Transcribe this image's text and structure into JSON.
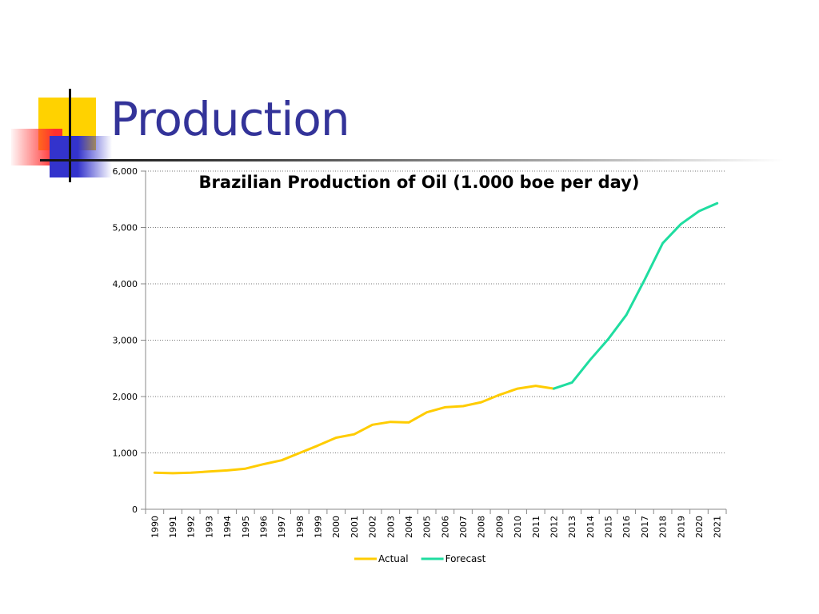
{
  "slide": {
    "title": "Production"
  },
  "colors": {
    "title": "#333399",
    "actual": "#FFCC00",
    "forecast": "#1FDDA0",
    "grid": "#888888"
  },
  "chart_data": {
    "type": "line",
    "title": "Brazilian Production of Oil (1.000 boe per day)",
    "xlabel": "",
    "ylabel": "",
    "ylim": [
      0,
      6000
    ],
    "y_ticks": [
      0,
      1000,
      2000,
      3000,
      4000,
      5000,
      6000
    ],
    "y_tick_labels": [
      "0",
      "1,000",
      "2,000",
      "3,000",
      "4,000",
      "5,000",
      "6,000"
    ],
    "categories": [
      "1990",
      "1991",
      "1992",
      "1993",
      "1994",
      "1995",
      "1996",
      "1997",
      "1998",
      "1999",
      "2000",
      "2001",
      "2002",
      "2003",
      "2004",
      "2005",
      "2006",
      "2007",
      "2008",
      "2009",
      "2010",
      "2011",
      "2012",
      "2013",
      "2014",
      "2015",
      "2016",
      "2017",
      "2018",
      "2019",
      "2020",
      "2021"
    ],
    "grid": "horizontal dotted",
    "legend_position": "bottom",
    "series": [
      {
        "name": "Actual",
        "color": "#FFCC00",
        "values": [
          650,
          640,
          650,
          670,
          690,
          720,
          800,
          870,
          1000,
          1130,
          1270,
          1330,
          1500,
          1550,
          1540,
          1720,
          1810,
          1830,
          1900,
          2030,
          2140,
          2190,
          2140,
          null,
          null,
          null,
          null,
          null,
          null,
          null,
          null,
          null
        ]
      },
      {
        "name": "Forecast",
        "color": "#1FDDA0",
        "values": [
          null,
          null,
          null,
          null,
          null,
          null,
          null,
          null,
          null,
          null,
          null,
          null,
          null,
          null,
          null,
          null,
          null,
          null,
          null,
          null,
          null,
          null,
          2140,
          2250,
          2650,
          3020,
          3450,
          4070,
          4720,
          5060,
          5290,
          5430
        ]
      }
    ]
  }
}
